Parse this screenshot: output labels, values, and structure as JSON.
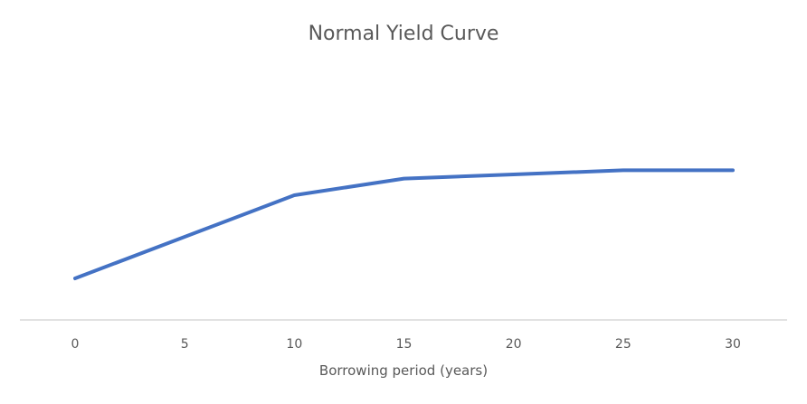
{
  "chart_data": {
    "type": "line",
    "title": "Normal Yield Curve",
    "xlabel": "Borrowing period (years)",
    "ylabel": "",
    "categories": [
      "0",
      "5",
      "10",
      "15",
      "20",
      "25",
      "30"
    ],
    "x": [
      0,
      5,
      10,
      15,
      20,
      25,
      30
    ],
    "series": [
      {
        "values": [
          1.0,
          2.0,
          3.0,
          3.4,
          3.5,
          3.6,
          3.6
        ]
      }
    ],
    "ylim": [
      0,
      7
    ],
    "grid": false,
    "legend": "none",
    "line_color": "#4472c4",
    "axis_color": "#d9d9d9",
    "text_color": "#595959"
  }
}
